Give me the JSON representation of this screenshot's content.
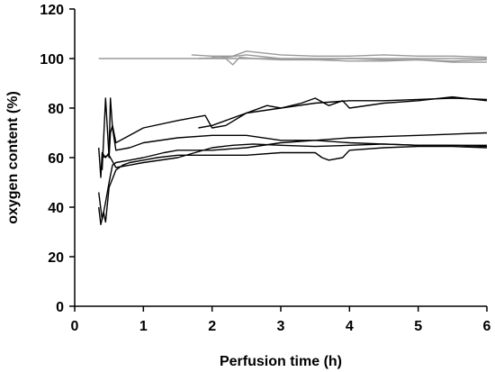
{
  "chart_data": {
    "type": "line",
    "title": "",
    "xlabel": "Perfusion time (h)",
    "ylabel": "oxygen content (%)",
    "xlim": [
      0,
      6
    ],
    "ylim": [
      0,
      120
    ],
    "xticks": [
      0,
      1,
      2,
      3,
      4,
      5,
      6
    ],
    "yticks": [
      0,
      20,
      40,
      60,
      80,
      100,
      120
    ],
    "grid": false,
    "legend": "none",
    "series": [
      {
        "color": "#9a9a9a",
        "x": [
          0.35,
          1.0,
          2.0,
          3.0,
          4.0,
          5.0,
          6.0
        ],
        "y": [
          100,
          100,
          100,
          100,
          100,
          100,
          100
        ]
      },
      {
        "color": "#9a9a9a",
        "x": [
          1.7,
          2.0,
          2.2,
          2.3,
          2.5,
          3.0,
          3.5,
          4.0,
          4.5,
          5.0,
          5.5,
          6.0
        ],
        "y": [
          101.5,
          101,
          101,
          101,
          103,
          101.5,
          101,
          101,
          101.5,
          101,
          101,
          100.5
        ]
      },
      {
        "color": "#9a9a9a",
        "x": [
          2.0,
          2.2,
          2.3,
          2.4,
          2.6,
          3.0,
          3.5,
          4.0,
          4.5,
          5.0,
          5.5,
          6.0
        ],
        "y": [
          100.5,
          100,
          97.5,
          100.5,
          100,
          99.5,
          99.5,
          99,
          99,
          99.5,
          98.5,
          98.5
        ]
      },
      {
        "color": "#9a9a9a",
        "x": [
          1.8,
          2.2,
          2.5,
          3.0,
          3.5,
          4.0,
          4.5,
          5.0,
          5.5,
          6.0
        ],
        "y": [
          100,
          100.5,
          101.5,
          100,
          99.5,
          100,
          99.5,
          99.5,
          99,
          99.5
        ]
      },
      {
        "color": "#000000",
        "x": [
          0.4,
          0.45,
          0.5,
          0.52,
          0.55,
          0.6,
          0.8,
          1.0,
          1.5,
          1.9,
          2.0,
          2.2,
          2.5,
          3.0,
          3.5,
          4.0,
          4.5,
          5.0,
          5.5,
          6.0
        ],
        "y": [
          55,
          84,
          60,
          70,
          73,
          66,
          69,
          72,
          75,
          77,
          72,
          73,
          78,
          80,
          82,
          83,
          83,
          83.5,
          84,
          83.5
        ]
      },
      {
        "color": "#000000",
        "x": [
          1.8,
          2.0,
          2.2,
          2.5,
          2.8,
          3.0,
          3.3,
          3.5,
          3.7,
          3.9,
          4.0,
          4.5,
          5.0,
          5.5,
          6.0
        ],
        "y": [
          72,
          73,
          75,
          78,
          81,
          80,
          82,
          84,
          81,
          83,
          80,
          82,
          83,
          84.5,
          83
        ]
      },
      {
        "color": "#000000",
        "x": [
          0.35,
          0.38,
          0.4,
          0.45,
          0.5,
          0.52,
          0.55,
          0.6,
          0.8,
          1.0,
          1.5,
          2.0,
          2.5,
          3.0,
          3.5,
          4.0,
          4.5,
          5.0,
          5.5,
          6.0
        ],
        "y": [
          64,
          52,
          62,
          60,
          62,
          84,
          72,
          63,
          64,
          66,
          68,
          69,
          69,
          67,
          67,
          68,
          68.5,
          69,
          69.5,
          70
        ]
      },
      {
        "color": "#000000",
        "x": [
          0.35,
          0.4,
          0.45,
          0.5,
          0.55,
          0.6,
          0.8,
          1.0,
          1.3,
          1.5,
          2.0,
          2.5,
          3.0,
          3.5,
          4.0,
          4.5,
          5.0,
          5.5,
          6.0
        ],
        "y": [
          46,
          35,
          42,
          50,
          57,
          58,
          59,
          60,
          62,
          63,
          63,
          64,
          66,
          67,
          66,
          65.5,
          65,
          65,
          64.5
        ]
      },
      {
        "color": "#000000",
        "x": [
          0.35,
          0.38,
          0.42,
          0.45,
          0.5,
          0.6,
          0.7,
          0.8,
          1.0,
          1.2,
          1.5,
          2.0,
          2.5,
          3.0,
          3.5,
          3.6,
          3.7,
          3.9,
          4.0,
          4.5,
          5.0,
          5.5,
          6.0
        ],
        "y": [
          40,
          33,
          38,
          34,
          48,
          55,
          57,
          58,
          59,
          60,
          61,
          61,
          61,
          62,
          62,
          60,
          59,
          60,
          63,
          64,
          64.5,
          64.5,
          64
        ]
      },
      {
        "color": "#000000",
        "x": [
          0.4,
          0.5,
          0.6,
          0.8,
          1.0,
          1.5,
          2.0,
          2.3,
          2.6,
          3.0,
          3.5,
          4.0,
          4.5,
          5.0,
          5.5,
          6.0
        ],
        "y": [
          60,
          61,
          56,
          57,
          58,
          60,
          64,
          65,
          65.5,
          65,
          64.5,
          65,
          65.5,
          65,
          65,
          65
        ]
      }
    ]
  }
}
